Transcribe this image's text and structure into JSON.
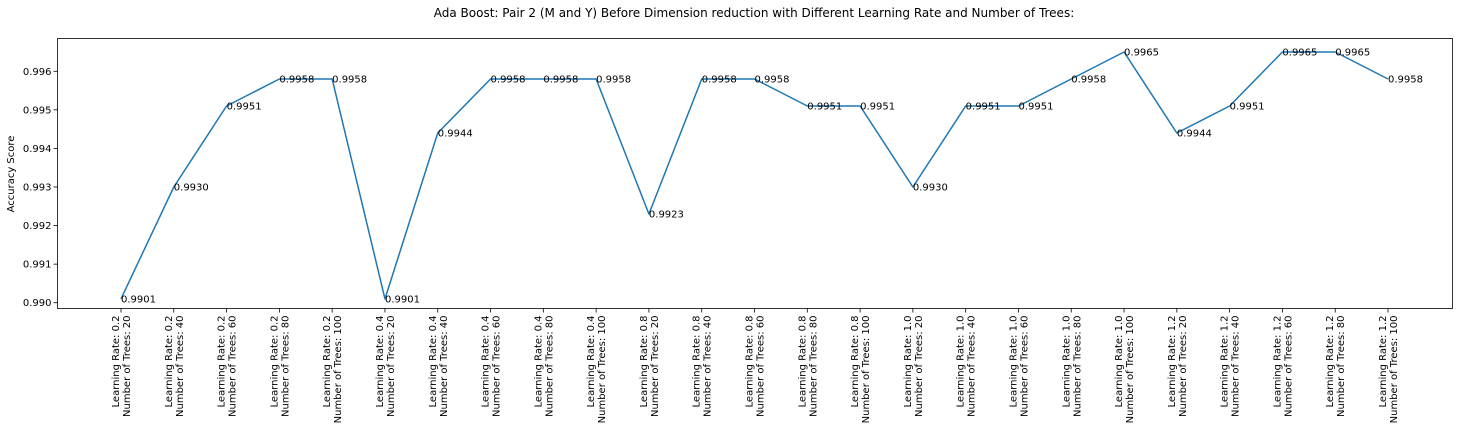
{
  "chart_data": {
    "type": "line",
    "title": "Ada Boost: Pair 2 (M and Y) Before Dimension reduction with Different Learning Rate and Number of Trees:",
    "xlabel": "",
    "ylabel": "Accuracy Score",
    "ylim": [
      0.98985,
      0.99685
    ],
    "yticks": [
      "0.990",
      "0.991",
      "0.992",
      "0.993",
      "0.994",
      "0.995",
      "0.996"
    ],
    "grid": false,
    "line_color": "#1f77b4",
    "categories": [
      [
        "Learning Rate: 0.2",
        "Number of Trees: 20"
      ],
      [
        "Learning Rate: 0.2",
        "Number of Trees: 40"
      ],
      [
        "Learning Rate: 0.2",
        "Number of Trees: 60"
      ],
      [
        "Learning Rate: 0.2",
        "Number of Trees: 80"
      ],
      [
        "Learning Rate: 0.2",
        "Number of Trees: 100"
      ],
      [
        "Learning Rate: 0.4",
        "Number of Trees: 20"
      ],
      [
        "Learning Rate: 0.4",
        "Number of Trees: 40"
      ],
      [
        "Learning Rate: 0.4",
        "Number of Trees: 60"
      ],
      [
        "Learning Rate: 0.4",
        "Number of Trees: 80"
      ],
      [
        "Learning Rate: 0.4",
        "Number of Trees: 100"
      ],
      [
        "Learning Rate: 0.8",
        "Number of Trees: 20"
      ],
      [
        "Learning Rate: 0.8",
        "Number of Trees: 40"
      ],
      [
        "Learning Rate: 0.8",
        "Number of Trees: 60"
      ],
      [
        "Learning Rate: 0.8",
        "Number of Trees: 80"
      ],
      [
        "Learning Rate: 0.8",
        "Number of Trees: 100"
      ],
      [
        "Learning Rate: 1.0",
        "Number of Trees: 20"
      ],
      [
        "Learning Rate: 1.0",
        "Number of Trees: 40"
      ],
      [
        "Learning Rate: 1.0",
        "Number of Trees: 60"
      ],
      [
        "Learning Rate: 1.0",
        "Number of Trees: 80"
      ],
      [
        "Learning Rate: 1.0",
        "Number of Trees: 100"
      ],
      [
        "Learning Rate: 1.2",
        "Number of Trees: 20"
      ],
      [
        "Learning Rate: 1.2",
        "Number of Trees: 40"
      ],
      [
        "Learning Rate: 1.2",
        "Number of Trees: 60"
      ],
      [
        "Learning Rate: 1.2",
        "Number of Trees: 80"
      ],
      [
        "Learning Rate: 1.2",
        "Number of Trees: 100"
      ]
    ],
    "values": [
      0.9901,
      0.993,
      0.9951,
      0.9958,
      0.9958,
      0.9901,
      0.9944,
      0.9958,
      0.9958,
      0.9958,
      0.9923,
      0.9958,
      0.9958,
      0.9951,
      0.9951,
      0.993,
      0.9951,
      0.9951,
      0.9958,
      0.9965,
      0.9944,
      0.9951,
      0.9965,
      0.9965,
      0.9958
    ],
    "data_labels": [
      "0.9901",
      "0.9930",
      "0.9951",
      "0.9958",
      "0.9958",
      "0.9901",
      "0.9944",
      "0.9958",
      "0.9958",
      "0.9958",
      "0.9923",
      "0.9958",
      "0.9958",
      "0.9951",
      "0.9951",
      "0.9930",
      "0.9951",
      "0.9951",
      "0.9958",
      "0.9965",
      "0.9944",
      "0.9951",
      "0.9965",
      "0.9965",
      "0.9958"
    ]
  }
}
